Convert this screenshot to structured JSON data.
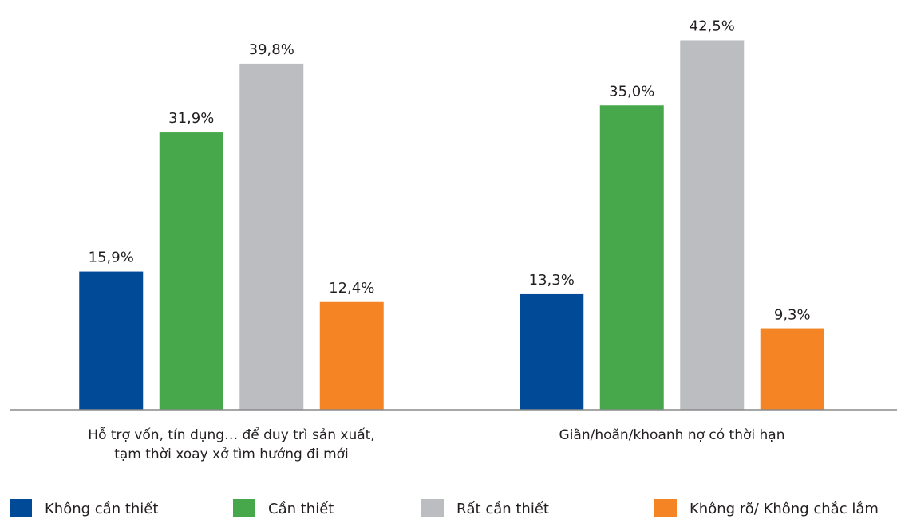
{
  "chart_data": {
    "type": "bar",
    "categories": [
      "Hỗ trợ vốn, tín dụng… để duy trì sản xuất,\ntạm thời xoay xở tìm hướng đi mới",
      "Giãn/hoãn/khoanh nợ có thời hạn"
    ],
    "series": [
      {
        "name": "Không cần thiết",
        "color": "#004a98",
        "values": [
          15.9,
          13.3
        ],
        "value_labels": [
          "15,9%",
          "13,3%"
        ]
      },
      {
        "name": "Cần thiết",
        "color": "#46a84a",
        "values": [
          31.9,
          35.0
        ],
        "value_labels": [
          "31,9%",
          "35,0%"
        ]
      },
      {
        "name": "Rất cần thiết",
        "color": "#bcbdc0",
        "values": [
          39.8,
          42.5
        ],
        "value_labels": [
          "39,8%",
          "42,5%"
        ]
      },
      {
        "name": "Không rõ/ Không chắc lắm",
        "color": "#f58524",
        "values": [
          12.4,
          9.3
        ],
        "value_labels": [
          "12,4%",
          "9,3%"
        ]
      }
    ],
    "ylim": [
      0,
      43
    ],
    "legend": "bottom"
  }
}
